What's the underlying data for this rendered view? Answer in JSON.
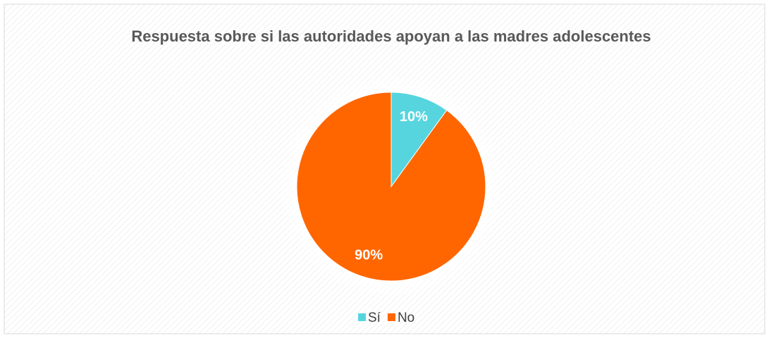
{
  "chart_data": {
    "type": "pie",
    "title": "Respuesta sobre si las autoridades apoyan a las madres adolescentes",
    "categories": [
      "Sí",
      "No"
    ],
    "values": [
      10,
      90
    ],
    "value_labels": [
      "10%",
      "90%"
    ],
    "colors": [
      "#56d5df",
      "#ff6600"
    ],
    "legend": "bottom"
  }
}
